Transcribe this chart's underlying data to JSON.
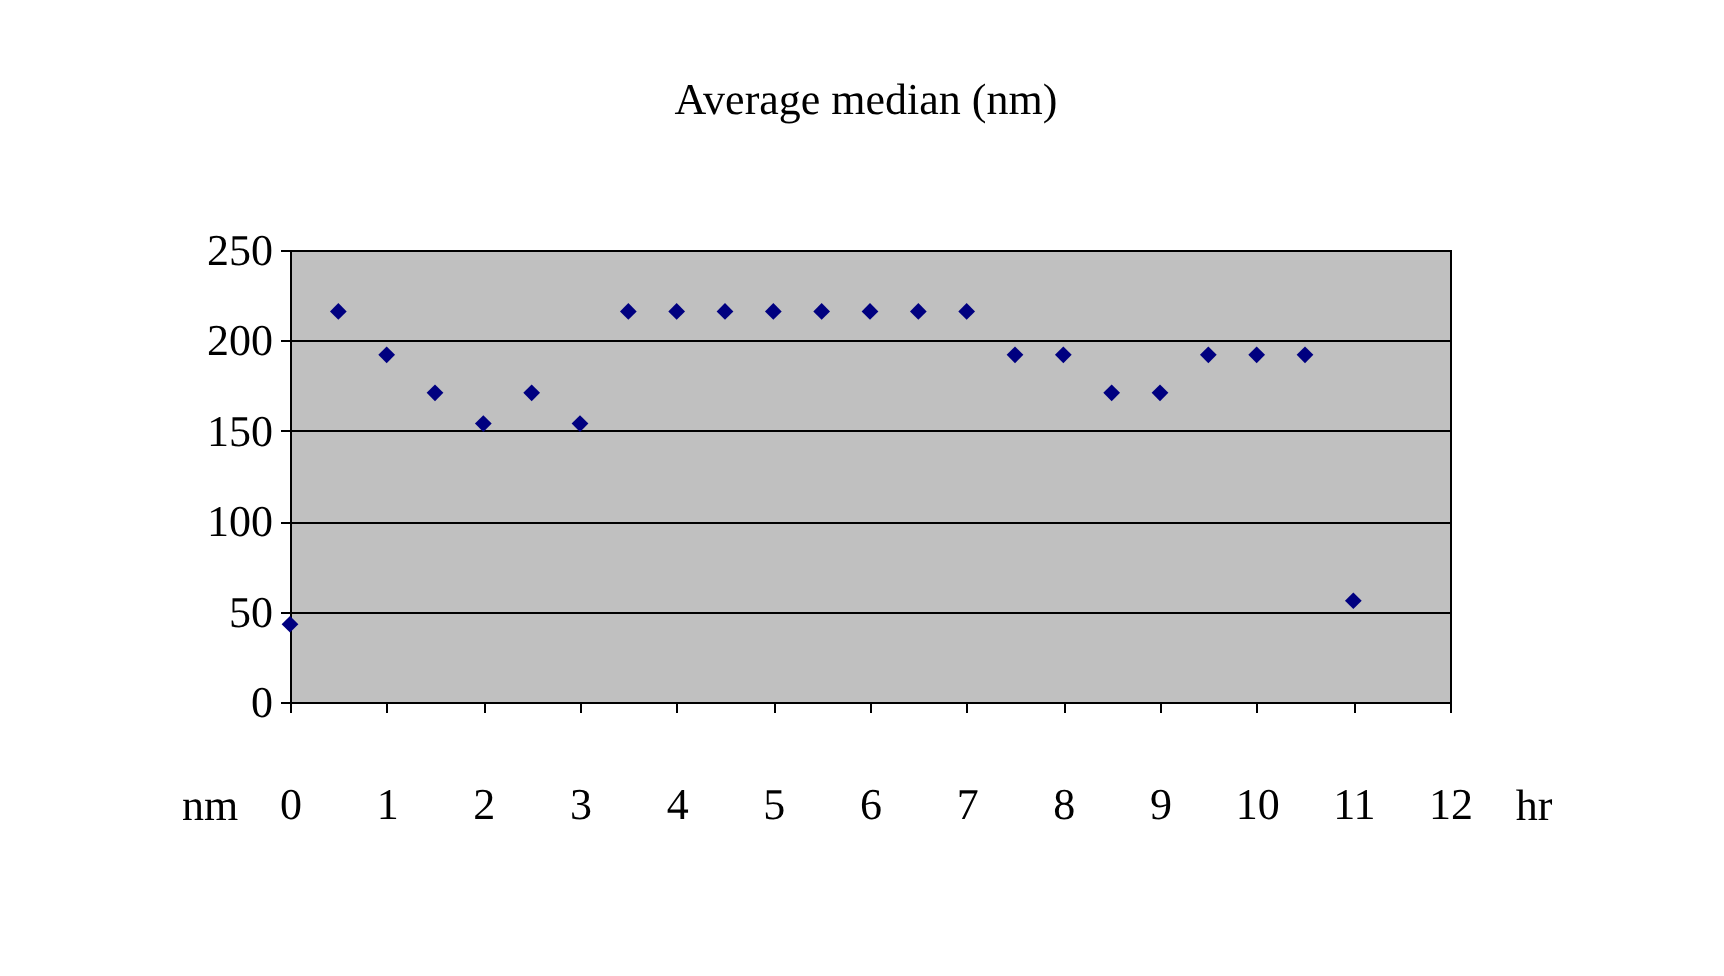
{
  "chart_data": {
    "type": "scatter",
    "title": "Average median (nm)",
    "xlabel": "hr",
    "ylabel": "nm",
    "x": [
      0,
      0.5,
      1,
      1.5,
      2,
      2.5,
      3,
      3.5,
      4,
      4.5,
      5,
      5.5,
      6,
      6.5,
      7,
      7.5,
      8,
      8.5,
      9,
      9.5,
      10,
      10.5,
      11
    ],
    "series": [
      {
        "color": "#000080",
        "values": [
          43,
          216,
          192,
          171,
          154,
          171,
          154,
          216,
          216,
          216,
          216,
          216,
          216,
          216,
          216,
          192,
          192,
          171,
          171,
          192,
          192,
          192,
          56
        ]
      }
    ],
    "xlim": [
      0,
      12
    ],
    "xticks": [
      0,
      1,
      2,
      3,
      4,
      5,
      6,
      7,
      8,
      9,
      10,
      11,
      12
    ],
    "ylim": [
      0,
      250
    ],
    "yticks": [
      0,
      50,
      100,
      150,
      200,
      250
    ],
    "grid": "y",
    "marker": "diamond"
  }
}
